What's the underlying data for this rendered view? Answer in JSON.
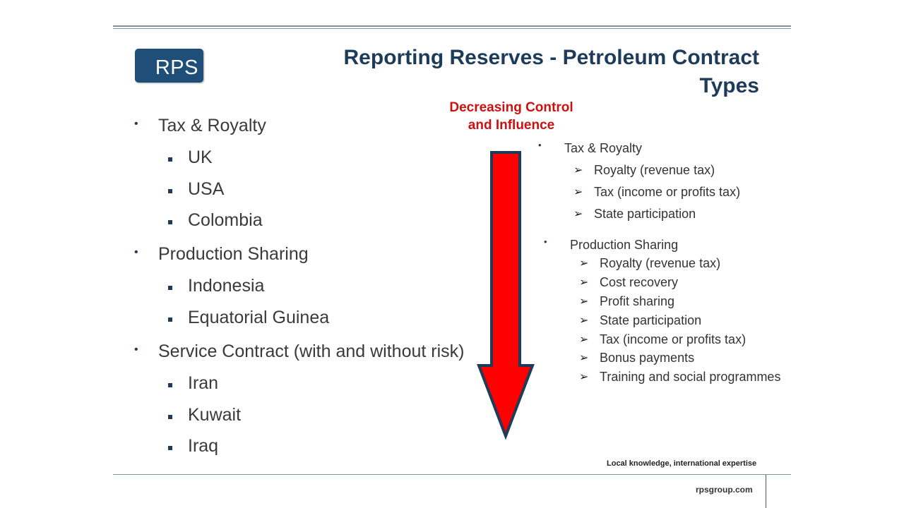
{
  "logo": {
    "text": "RPS"
  },
  "title": {
    "line1": "Reporting Reserves - Petroleum Contract",
    "line2": "Types"
  },
  "left_list": {
    "groups": [
      {
        "label": "Tax & Royalty",
        "items": [
          "UK",
          "USA",
          "Colombia"
        ]
      },
      {
        "label": "Production Sharing",
        "items": [
          "Indonesia",
          "Equatorial Guinea"
        ]
      },
      {
        "label": "Service Contract (with and without risk)",
        "items": [
          "Iran",
          "Kuwait",
          "Iraq"
        ]
      }
    ]
  },
  "arrow": {
    "caption_line1": "Decreasing Control",
    "caption_line2": "and Influence",
    "fill_color": "#ff0000",
    "outline_color": "#1f3b5a"
  },
  "right_list": {
    "groups": [
      {
        "label": "Tax & Royalty",
        "items": [
          "Royalty (revenue tax)",
          "Tax (income or profits tax)",
          "State participation"
        ]
      },
      {
        "label": "Production Sharing",
        "items": [
          "Royalty (revenue tax)",
          "Cost recovery",
          "Profit sharing",
          "State participation",
          "Tax (income or profits tax)",
          "Bonus payments",
          "Training and social programmes"
        ]
      }
    ]
  },
  "footer": {
    "tagline": "Local knowledge, international expertise",
    "website": "rpsgroup.com"
  }
}
